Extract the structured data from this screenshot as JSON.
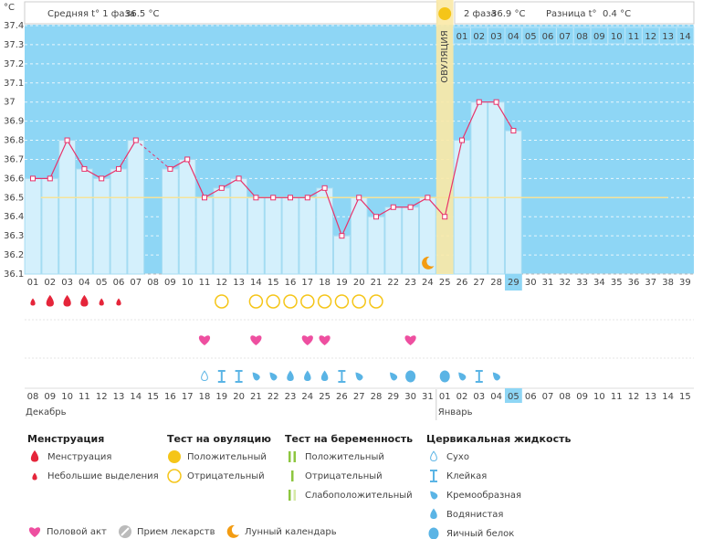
{
  "chart_data": {
    "type": "line",
    "y_label": "°C",
    "header": {
      "phase1": {
        "label": "Средняя t° 1 фаза",
        "value": "36.5 °C"
      },
      "phase2": {
        "label": "2 фаза",
        "value": "36.9 °C"
      },
      "difference": {
        "label": "Разница t°",
        "value": "0.4 °C"
      }
    },
    "phase2_days": [
      "01",
      "02",
      "03",
      "04",
      "05",
      "06",
      "07",
      "08",
      "09",
      "10",
      "11",
      "12",
      "13",
      "14"
    ],
    "ovulation": {
      "label": "ОВУЛЯЦИЯ",
      "day": "25"
    },
    "today": "29",
    "moon_day": "24",
    "categories": [
      "01",
      "02",
      "03",
      "04",
      "05",
      "06",
      "07",
      "08",
      "09",
      "10",
      "11",
      "12",
      "13",
      "14",
      "15",
      "16",
      "17",
      "18",
      "19",
      "20",
      "21",
      "22",
      "23",
      "24",
      "25",
      "26",
      "27",
      "28",
      "29",
      "30",
      "31",
      "32",
      "33",
      "34",
      "35",
      "36",
      "37",
      "38",
      "39"
    ],
    "values": [
      36.6,
      36.6,
      36.8,
      36.65,
      36.6,
      36.65,
      36.8,
      null,
      36.65,
      36.7,
      36.5,
      36.55,
      36.6,
      36.5,
      36.5,
      36.5,
      36.5,
      36.55,
      36.3,
      36.5,
      36.4,
      36.45,
      36.45,
      36.5,
      36.4,
      36.8,
      37.0,
      37.0,
      36.85,
      null,
      null,
      null,
      null,
      null,
      null,
      null,
      null,
      null,
      null
    ],
    "color": "#e8336b",
    "coverline": 36.5,
    "ylim": [
      36.1,
      37.4
    ],
    "yticks": [
      36.1,
      36.2,
      36.3,
      36.4,
      36.5,
      36.6,
      36.7,
      36.8,
      36.9,
      37,
      37.1,
      37.2,
      37.3,
      37.4
    ],
    "grid": true,
    "dates": [
      {
        "label": "08",
        "weekend": false
      },
      {
        "label": "09",
        "weekend": false
      },
      {
        "label": "10",
        "weekend": false
      },
      {
        "label": "11",
        "weekend": true
      },
      {
        "label": "12",
        "weekend": false
      },
      {
        "label": "13",
        "weekend": false
      },
      {
        "label": "14",
        "weekend": false
      },
      {
        "label": "15",
        "weekend": false
      },
      {
        "label": "16",
        "weekend": false
      },
      {
        "label": "17",
        "weekend": true
      },
      {
        "label": "18",
        "weekend": true
      },
      {
        "label": "19",
        "weekend": false
      },
      {
        "label": "20",
        "weekend": false
      },
      {
        "label": "21",
        "weekend": false
      },
      {
        "label": "22",
        "weekend": false
      },
      {
        "label": "23",
        "weekend": false
      },
      {
        "label": "24",
        "weekend": true
      },
      {
        "label": "25",
        "weekend": true
      },
      {
        "label": "26",
        "weekend": false
      },
      {
        "label": "27",
        "weekend": false
      },
      {
        "label": "28",
        "weekend": false
      },
      {
        "label": "29",
        "weekend": false
      },
      {
        "label": "30",
        "weekend": false
      },
      {
        "label": "31",
        "weekend": true
      },
      {
        "label": "01",
        "weekend": true
      },
      {
        "label": "02",
        "weekend": false
      },
      {
        "label": "03",
        "weekend": false
      },
      {
        "label": "04",
        "weekend": false
      },
      {
        "label": "05",
        "weekend": false
      },
      {
        "label": "06",
        "weekend": false
      },
      {
        "label": "07",
        "weekend": true
      },
      {
        "label": "08",
        "weekend": true
      },
      {
        "label": "09",
        "weekend": false
      },
      {
        "label": "10",
        "weekend": false
      },
      {
        "label": "11",
        "weekend": false
      },
      {
        "label": "12",
        "weekend": false
      },
      {
        "label": "13",
        "weekend": false
      },
      {
        "label": "14",
        "weekend": true
      },
      {
        "label": "15",
        "weekend": true
      }
    ],
    "months": [
      "Декабрь",
      "Январь"
    ],
    "rows": {
      "bleeding": [
        "light",
        "heavy",
        "heavy",
        "heavy",
        "light",
        "light",
        null,
        null,
        null,
        null,
        null,
        null,
        null,
        null,
        null,
        null,
        null,
        null,
        null,
        null,
        null,
        null,
        null,
        null,
        null,
        null,
        null,
        null,
        null,
        null,
        null,
        null,
        null,
        null,
        null,
        null,
        null,
        null,
        null
      ],
      "ovulation_test": [
        null,
        null,
        null,
        null,
        null,
        null,
        null,
        null,
        null,
        null,
        null,
        "neg",
        null,
        "neg",
        "neg",
        "neg",
        "neg",
        "neg",
        "neg",
        "neg",
        "neg",
        null,
        null,
        null,
        null,
        null,
        null,
        null,
        null,
        null,
        null,
        null,
        null,
        null,
        null,
        null,
        null,
        null,
        null
      ],
      "intercourse": [
        null,
        null,
        null,
        null,
        null,
        null,
        null,
        null,
        null,
        null,
        "heart",
        null,
        null,
        "heart",
        null,
        null,
        "heart",
        "heart",
        null,
        null,
        null,
        null,
        "heart",
        null,
        null,
        null,
        null,
        null,
        null,
        null,
        null,
        null,
        null,
        null,
        null,
        null,
        null,
        null,
        null
      ],
      "cervical": [
        null,
        null,
        null,
        null,
        null,
        null,
        null,
        null,
        null,
        null,
        "dry",
        "sticky",
        "sticky",
        "creamy",
        "creamy",
        "watery",
        "watery",
        "watery",
        "sticky",
        "creamy",
        null,
        "creamy",
        "egg",
        null,
        "egg",
        "creamy",
        "sticky",
        "creamy",
        null,
        null,
        null,
        null,
        null,
        null,
        null,
        null,
        null,
        null,
        null
      ]
    },
    "legend": {
      "groups": [
        {
          "title": "Менструация",
          "items": [
            {
              "label": "Менструация",
              "icon": "heavy"
            },
            {
              "label": "Небольшие выделения",
              "icon": "light"
            }
          ]
        },
        {
          "title": "Тест на овуляцию",
          "items": [
            {
              "label": "Положительный",
              "icon": "pos"
            },
            {
              "label": "Отрицательный",
              "icon": "neg"
            }
          ]
        },
        {
          "title": "Тест на беременность",
          "items": [
            {
              "label": "Положительный",
              "icon": "preg-pos"
            },
            {
              "label": "Отрицательный",
              "icon": "preg-neg"
            },
            {
              "label": "Слабоположительный",
              "icon": "preg-weak"
            }
          ]
        },
        {
          "title": "Цервикальная жидкость",
          "items": [
            {
              "label": "Сухо",
              "icon": "dry"
            },
            {
              "label": "Клейкая",
              "icon": "sticky"
            },
            {
              "label": "Кремообразная",
              "icon": "creamy"
            },
            {
              "label": "Водянистая",
              "icon": "watery"
            },
            {
              "label": "Яичный белок",
              "icon": "egg"
            }
          ]
        }
      ],
      "extras": [
        {
          "label": "Половой акт",
          "icon": "heart"
        },
        {
          "label": "Прием лекарств",
          "icon": "pill"
        },
        {
          "label": "Лунный календарь",
          "icon": "moon"
        }
      ]
    }
  }
}
